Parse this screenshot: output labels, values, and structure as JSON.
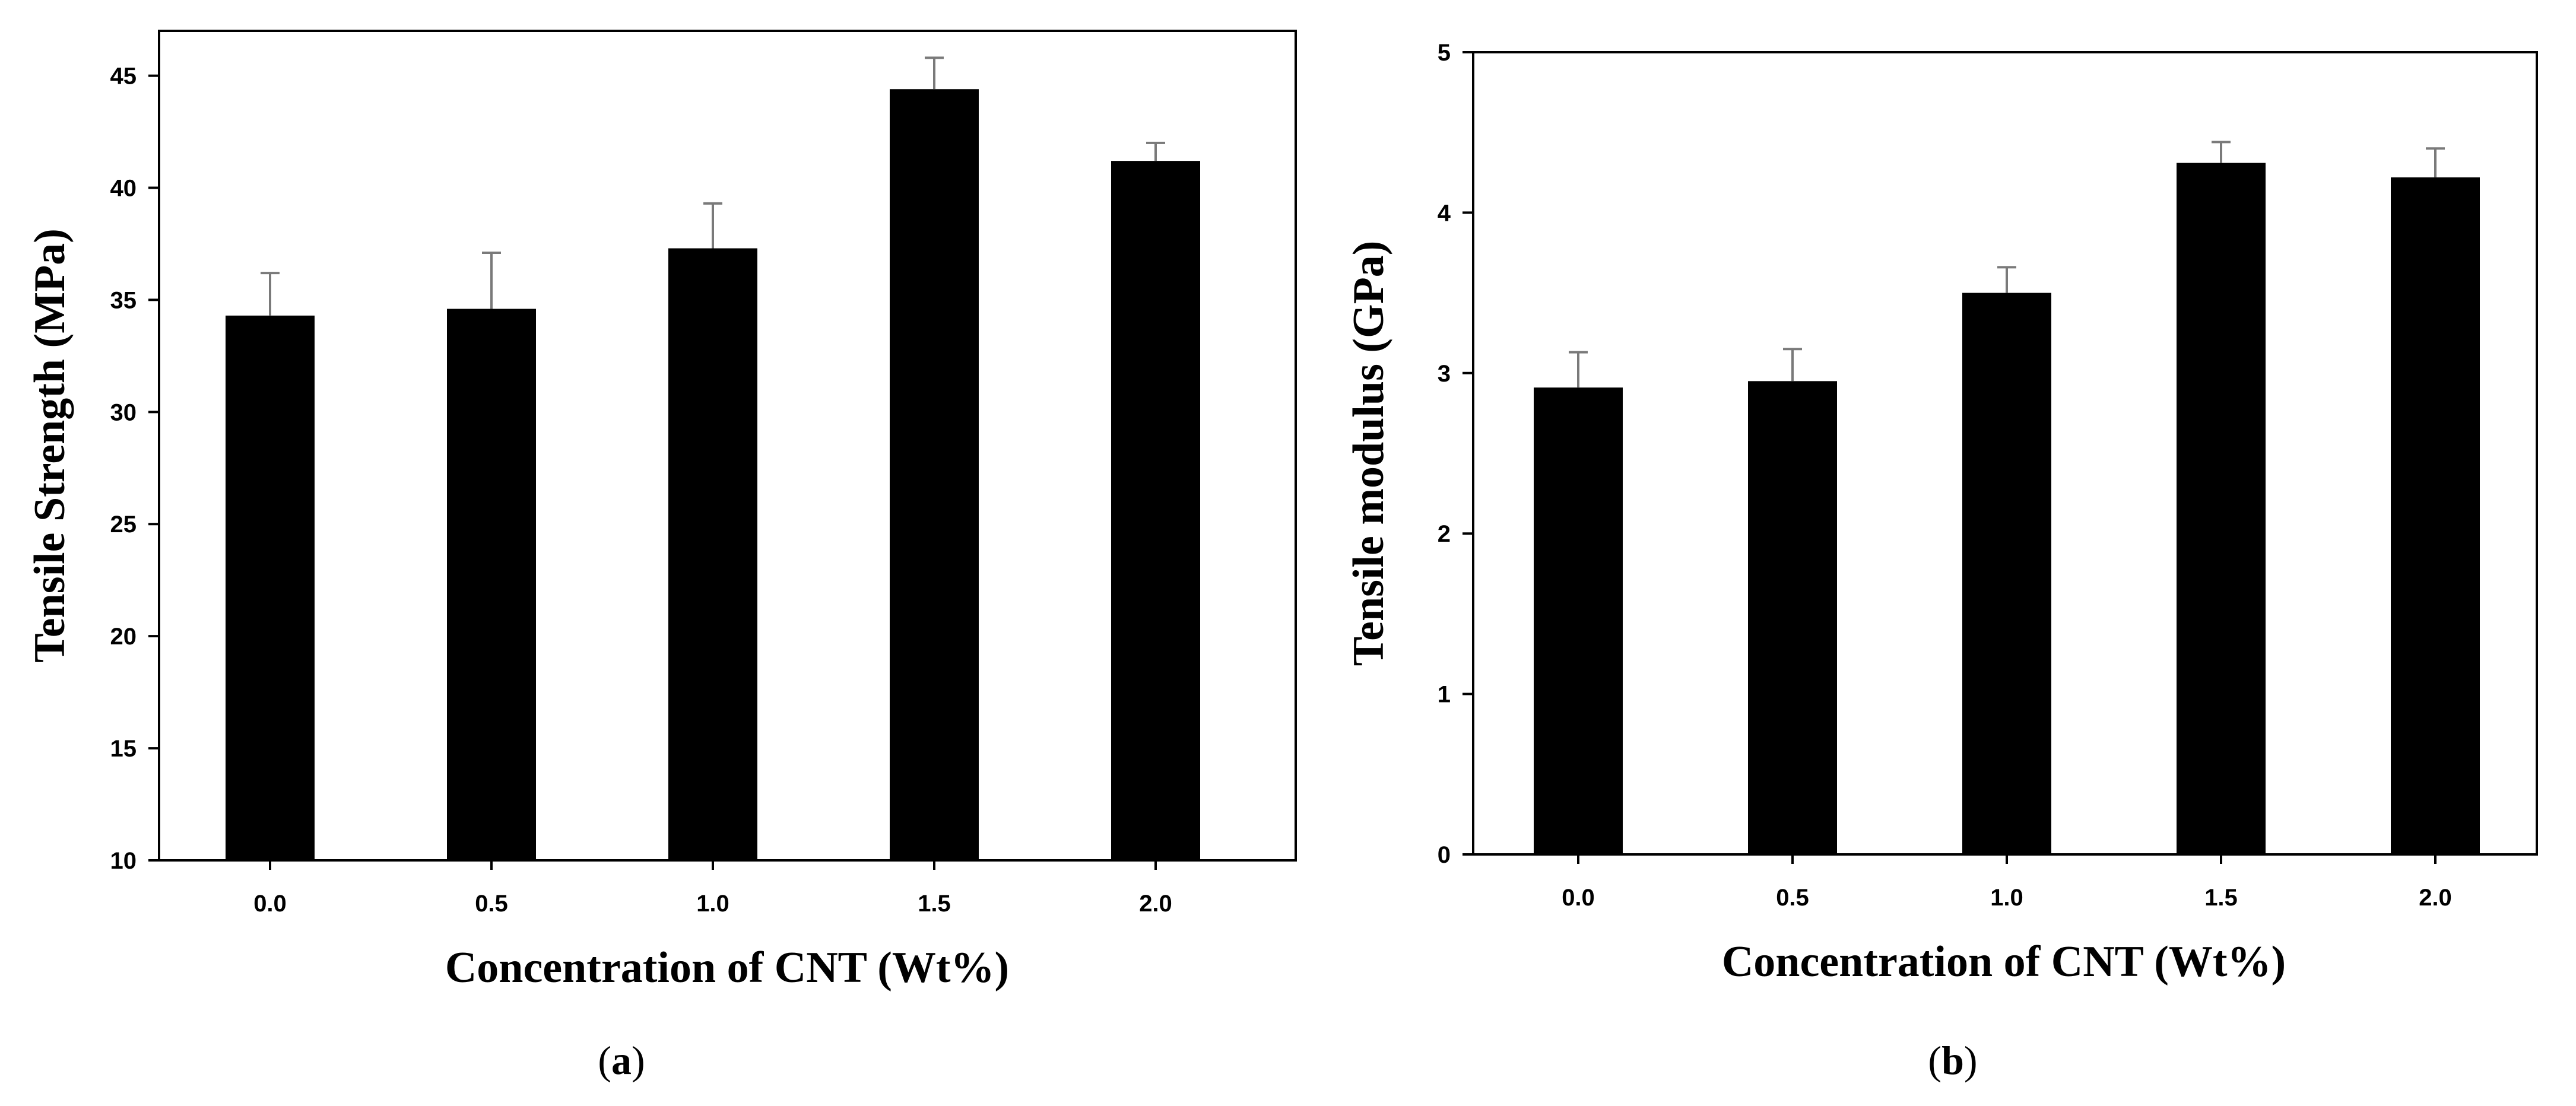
{
  "chart_data": [
    {
      "type": "bar",
      "panel": "a",
      "categories": [
        "0.0",
        "0.5",
        "1.0",
        "1.5",
        "2.0"
      ],
      "values": [
        34.3,
        34.6,
        37.3,
        44.4,
        41.2
      ],
      "error": [
        1.9,
        2.5,
        2.0,
        1.4,
        0.8
      ],
      "title": "",
      "xlabel": "Concentration of CNT (Wt%)",
      "ylabel": "Tensile Strength (MPa)",
      "ylim": [
        10,
        47
      ],
      "yticks": [
        "10",
        "15",
        "20",
        "25",
        "30",
        "35",
        "40",
        "45"
      ],
      "bar_color": "#000000",
      "grid": false
    },
    {
      "type": "bar",
      "panel": "b",
      "categories": [
        "0.0",
        "0.5",
        "1.0",
        "1.5",
        "2.0"
      ],
      "values": [
        2.91,
        2.95,
        3.5,
        4.31,
        4.22
      ],
      "error": [
        0.22,
        0.2,
        0.16,
        0.13,
        0.18
      ],
      "title": "",
      "xlabel": "Concentration of CNT (Wt%)",
      "ylabel": "Tensile modulus (GPa)",
      "ylim": [
        0,
        5
      ],
      "yticks": [
        "0",
        "1",
        "2",
        "3",
        "4",
        "5"
      ],
      "bar_color": "#000000",
      "grid": false
    }
  ],
  "captions": {
    "a": "a",
    "b": "b"
  }
}
